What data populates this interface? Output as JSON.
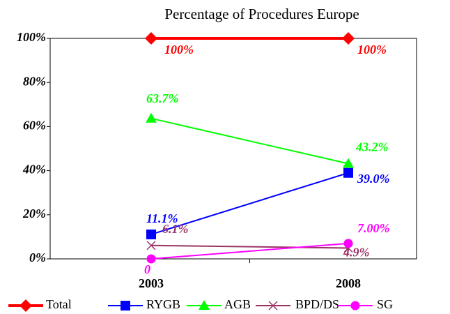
{
  "chart_data": {
    "type": "line",
    "title": "Percentage of Procedures Europe",
    "categories": [
      "2003",
      "2008"
    ],
    "series": [
      {
        "name": "Total",
        "color": "#ff0000",
        "marker": "diamond",
        "values": [
          100,
          100
        ],
        "value_labels": [
          "100%",
          "100%"
        ]
      },
      {
        "name": "RYGB",
        "color": "#0000ff",
        "marker": "square",
        "values": [
          11.1,
          39.0
        ],
        "value_labels": [
          "11.1%",
          "39.0%"
        ]
      },
      {
        "name": "AGB",
        "color": "#00ff00",
        "marker": "triangle",
        "values": [
          63.7,
          43.2
        ],
        "value_labels": [
          "63.7%",
          "43.2%"
        ]
      },
      {
        "name": "BPD/DS",
        "color": "#993366",
        "marker": "x",
        "values": [
          6.1,
          4.9
        ],
        "value_labels": [
          "6.1%",
          "4.9%"
        ]
      },
      {
        "name": "SG",
        "color": "#ff00ff",
        "marker": "circle",
        "values": [
          0,
          7.0
        ],
        "value_labels": [
          "0",
          "7.00%"
        ]
      }
    ],
    "ylim": [
      0,
      100
    ],
    "yticks": [
      {
        "value": 0,
        "label": "0%"
      },
      {
        "value": 20,
        "label": "20%"
      },
      {
        "value": 40,
        "label": "40%"
      },
      {
        "value": 60,
        "label": "60%"
      },
      {
        "value": 80,
        "label": "80%"
      },
      {
        "value": 100,
        "label": "100%"
      }
    ],
    "legend": "bottom"
  }
}
